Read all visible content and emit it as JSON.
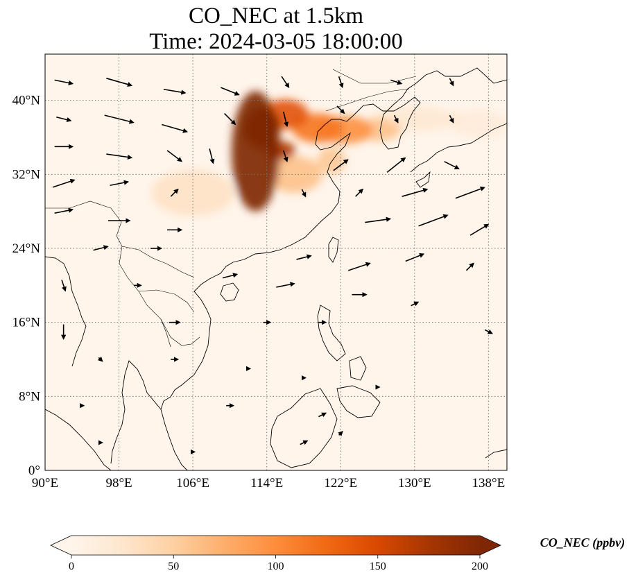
{
  "title": {
    "line1": "CO_NEC at 1.5km",
    "line2": "Time: 2024-03-05 18:00:00"
  },
  "map": {
    "projection": "PlateCarree",
    "extent": {
      "lon_min": 90,
      "lon_max": 140,
      "lat_min": 0,
      "lat_max": 45
    },
    "gridlines": true,
    "lon_ticks": [
      {
        "value": 90,
        "label": "90°E"
      },
      {
        "value": 98,
        "label": "98°E"
      },
      {
        "value": 106,
        "label": "106°E"
      },
      {
        "value": 114,
        "label": "114°E"
      },
      {
        "value": 122,
        "label": "122°E"
      },
      {
        "value": 130,
        "label": "130°E"
      },
      {
        "value": 138,
        "label": "138°E"
      }
    ],
    "lat_ticks": [
      {
        "value": 0,
        "label": "0°"
      },
      {
        "value": 8,
        "label": "8°N"
      },
      {
        "value": 16,
        "label": "16°N"
      },
      {
        "value": 24,
        "label": "24°N"
      },
      {
        "value": 32,
        "label": "32°N"
      },
      {
        "value": 40,
        "label": "40°N"
      }
    ],
    "background_color": "#fff5eb",
    "coastline_color": "#000000",
    "concentration_plumes": [
      {
        "lon": 112.8,
        "lat": 34.5,
        "rlon": 2.6,
        "rlat": 6.5,
        "value": 200
      },
      {
        "lon": 113.5,
        "lat": 37.0,
        "rlon": 2.0,
        "rlat": 2.2,
        "value": 200
      },
      {
        "lon": 115.5,
        "lat": 34.6,
        "rlon": 1.6,
        "rlat": 1.0,
        "value": 170
      },
      {
        "lon": 116.0,
        "lat": 38.5,
        "rlon": 2.5,
        "rlat": 1.6,
        "value": 140
      },
      {
        "lon": 119.5,
        "lat": 37.0,
        "rlon": 2.8,
        "rlat": 1.6,
        "value": 115
      },
      {
        "lon": 122.5,
        "lat": 36.8,
        "rlon": 3.0,
        "rlat": 1.5,
        "value": 95
      },
      {
        "lon": 126.0,
        "lat": 36.8,
        "rlon": 2.5,
        "rlat": 1.2,
        "value": 60
      },
      {
        "lon": 117.0,
        "lat": 32.0,
        "rlon": 3.0,
        "rlat": 2.0,
        "value": 60
      },
      {
        "lon": 121.0,
        "lat": 33.5,
        "rlon": 1.5,
        "rlat": 1.5,
        "value": 55
      },
      {
        "lon": 106.0,
        "lat": 30.0,
        "rlon": 4.5,
        "rlat": 2.5,
        "value": 30
      },
      {
        "lon": 130.0,
        "lat": 38.0,
        "rlon": 5.0,
        "rlat": 1.3,
        "value": 22
      },
      {
        "lon": 137.0,
        "lat": 37.5,
        "rlon": 3.0,
        "rlat": 1.5,
        "value": 15
      }
    ],
    "wind_vectors": [
      {
        "lon": 92,
        "lat": 42,
        "u": 5,
        "v": -1
      },
      {
        "lon": 98,
        "lat": 42,
        "u": 7,
        "v": -2
      },
      {
        "lon": 104,
        "lat": 41,
        "u": 6,
        "v": -1
      },
      {
        "lon": 110,
        "lat": 41,
        "u": 5,
        "v": -2
      },
      {
        "lon": 116,
        "lat": 42,
        "u": 2,
        "v": -3
      },
      {
        "lon": 122,
        "lat": 42,
        "u": 1,
        "v": -3
      },
      {
        "lon": 128,
        "lat": 42,
        "u": 3,
        "v": -1
      },
      {
        "lon": 134,
        "lat": 42,
        "u": 1,
        "v": -2
      },
      {
        "lon": 92,
        "lat": 38,
        "u": 4,
        "v": -1
      },
      {
        "lon": 98,
        "lat": 38,
        "u": 8,
        "v": -2
      },
      {
        "lon": 104,
        "lat": 37,
        "u": 7,
        "v": -2
      },
      {
        "lon": 110,
        "lat": 38,
        "u": 3,
        "v": -3
      },
      {
        "lon": 116,
        "lat": 38,
        "u": 1,
        "v": -4
      },
      {
        "lon": 122,
        "lat": 39,
        "u": 2,
        "v": -2
      },
      {
        "lon": 128,
        "lat": 38,
        "u": 1,
        "v": -2
      },
      {
        "lon": 134,
        "lat": 38,
        "u": 1,
        "v": -2
      },
      {
        "lon": 92,
        "lat": 35,
        "u": 5,
        "v": 0
      },
      {
        "lon": 98,
        "lat": 34,
        "u": 7,
        "v": -1
      },
      {
        "lon": 104,
        "lat": 34,
        "u": 4,
        "v": -3
      },
      {
        "lon": 108,
        "lat": 34,
        "u": 1,
        "v": -4
      },
      {
        "lon": 116,
        "lat": 34,
        "u": 1,
        "v": -3
      },
      {
        "lon": 122,
        "lat": 33,
        "u": 4,
        "v": 3
      },
      {
        "lon": 128,
        "lat": 33,
        "u": 5,
        "v": 4
      },
      {
        "lon": 134,
        "lat": 33,
        "u": 4,
        "v": -2
      },
      {
        "lon": 92,
        "lat": 31,
        "u": 6,
        "v": 2
      },
      {
        "lon": 98,
        "lat": 31,
        "u": 5,
        "v": 1
      },
      {
        "lon": 104,
        "lat": 30,
        "u": 2,
        "v": 2
      },
      {
        "lon": 118,
        "lat": 30,
        "u": 1,
        "v": -2
      },
      {
        "lon": 124,
        "lat": 30,
        "u": 2,
        "v": 2
      },
      {
        "lon": 130,
        "lat": 30,
        "u": 7,
        "v": 2
      },
      {
        "lon": 136,
        "lat": 30,
        "u": 8,
        "v": 3
      },
      {
        "lon": 92,
        "lat": 28,
        "u": 5,
        "v": 1
      },
      {
        "lon": 98,
        "lat": 27,
        "u": 6,
        "v": 0
      },
      {
        "lon": 104,
        "lat": 26,
        "u": 4,
        "v": 0
      },
      {
        "lon": 126,
        "lat": 27,
        "u": 7,
        "v": 1
      },
      {
        "lon": 132,
        "lat": 27,
        "u": 8,
        "v": 3
      },
      {
        "lon": 137,
        "lat": 26,
        "u": 5,
        "v": 3
      },
      {
        "lon": 96,
        "lat": 24,
        "u": 4,
        "v": 1
      },
      {
        "lon": 102,
        "lat": 24,
        "u": 3,
        "v": 0
      },
      {
        "lon": 118,
        "lat": 23,
        "u": 4,
        "v": 1
      },
      {
        "lon": 124,
        "lat": 22,
        "u": 6,
        "v": 2
      },
      {
        "lon": 130,
        "lat": 23,
        "u": 5,
        "v": 2
      },
      {
        "lon": 136,
        "lat": 22,
        "u": 2,
        "v": 2
      },
      {
        "lon": 92,
        "lat": 20,
        "u": 1,
        "v": -3
      },
      {
        "lon": 100,
        "lat": 20,
        "u": 2,
        "v": 0
      },
      {
        "lon": 110,
        "lat": 21,
        "u": 4,
        "v": 1
      },
      {
        "lon": 116,
        "lat": 20,
        "u": 5,
        "v": 1
      },
      {
        "lon": 124,
        "lat": 19,
        "u": 4,
        "v": 0
      },
      {
        "lon": 130,
        "lat": 18,
        "u": 2,
        "v": 1
      },
      {
        "lon": 92,
        "lat": 15,
        "u": 0,
        "v": -4
      },
      {
        "lon": 104,
        "lat": 16,
        "u": 3,
        "v": 0
      },
      {
        "lon": 114,
        "lat": 16,
        "u": 2,
        "v": 0
      },
      {
        "lon": 120,
        "lat": 16,
        "u": 2,
        "v": 0
      },
      {
        "lon": 138,
        "lat": 15,
        "u": 2,
        "v": -1
      },
      {
        "lon": 96,
        "lat": 12,
        "u": 1,
        "v": -1
      },
      {
        "lon": 104,
        "lat": 12,
        "u": 2,
        "v": 0
      },
      {
        "lon": 112,
        "lat": 11,
        "u": 1,
        "v": 0
      },
      {
        "lon": 118,
        "lat": 10,
        "u": 1,
        "v": 0
      },
      {
        "lon": 126,
        "lat": 9,
        "u": 1,
        "v": 0
      },
      {
        "lon": 94,
        "lat": 7,
        "u": 1,
        "v": 0
      },
      {
        "lon": 110,
        "lat": 7,
        "u": 2,
        "v": 0
      },
      {
        "lon": 120,
        "lat": 6,
        "u": 2,
        "v": 1
      },
      {
        "lon": 96,
        "lat": 3,
        "u": 1,
        "v": 0
      },
      {
        "lon": 106,
        "lat": 2,
        "u": 1,
        "v": 0
      },
      {
        "lon": 118,
        "lat": 3,
        "u": 2,
        "v": 1
      },
      {
        "lon": 122,
        "lat": 4,
        "u": 1,
        "v": 1
      }
    ]
  },
  "colorbar": {
    "label": "CO_NEC (ppbv)",
    "min": 0,
    "max": 200,
    "extend": "both",
    "colormap": "OrRd",
    "colormap_stops": [
      "#fff5eb",
      "#fee6ce",
      "#fdd0a2",
      "#fdae6b",
      "#fd8d3c",
      "#f16913",
      "#d94801",
      "#a63603",
      "#7f2704"
    ],
    "ticks": [
      {
        "value": 0,
        "label": "0"
      },
      {
        "value": 50,
        "label": "50"
      },
      {
        "value": 100,
        "label": "100"
      },
      {
        "value": 150,
        "label": "150"
      },
      {
        "value": 200,
        "label": "200"
      }
    ]
  }
}
